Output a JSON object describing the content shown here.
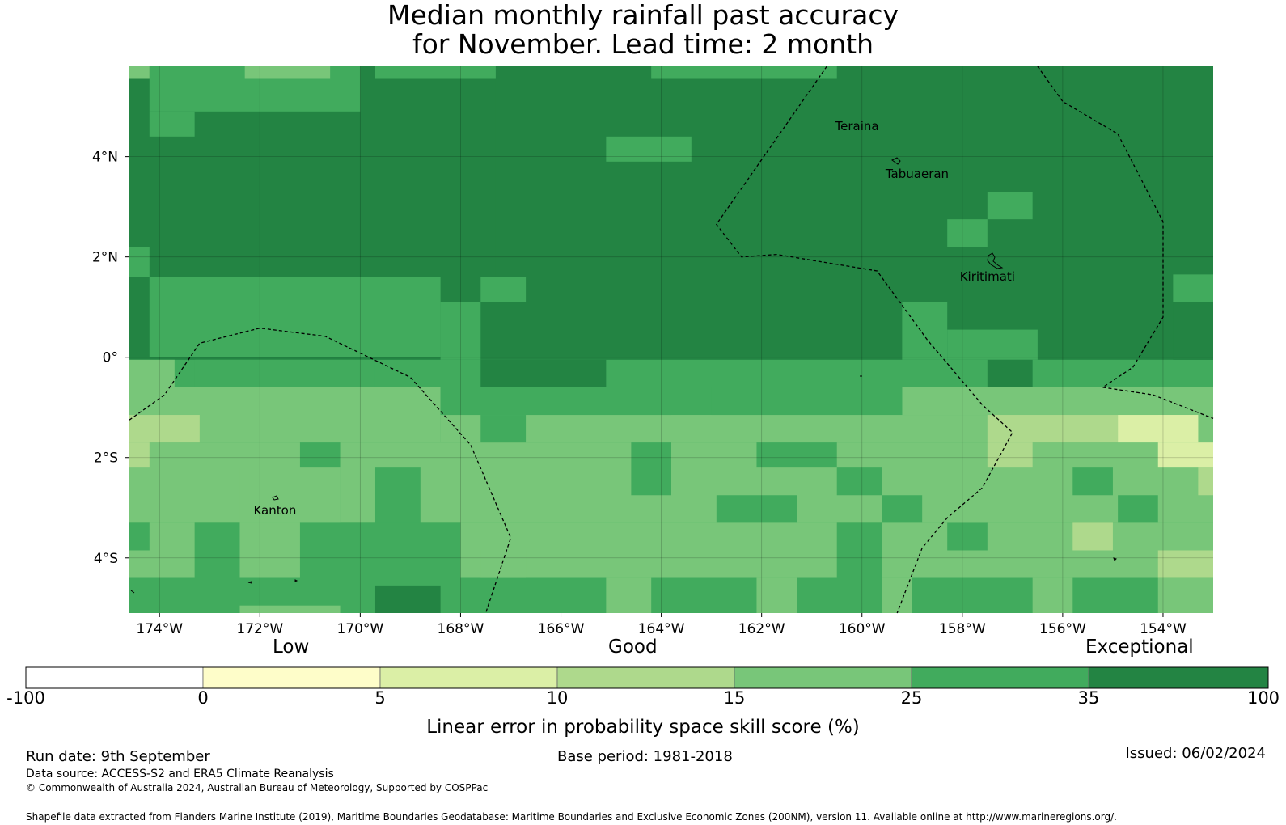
{
  "title": {
    "line1": "Median monthly rainfall past accuracy",
    "line2": "for November. Lead time: 2 month"
  },
  "map": {
    "lon_range": [
      -174.6,
      -153.0
    ],
    "lat_range": [
      -5.1,
      5.8
    ],
    "lon_ticks": [
      {
        "value": -174,
        "label": "174°W"
      },
      {
        "value": -172,
        "label": "172°W"
      },
      {
        "value": -170,
        "label": "170°W"
      },
      {
        "value": -168,
        "label": "168°W"
      },
      {
        "value": -166,
        "label": "166°W"
      },
      {
        "value": -164,
        "label": "164°W"
      },
      {
        "value": -162,
        "label": "162°W"
      },
      {
        "value": -160,
        "label": "160°W"
      },
      {
        "value": -158,
        "label": "158°W"
      },
      {
        "value": -156,
        "label": "156°W"
      },
      {
        "value": -154,
        "label": "154°W"
      }
    ],
    "lat_ticks": [
      {
        "value": 4,
        "label": "4°N"
      },
      {
        "value": 2,
        "label": "2°N"
      },
      {
        "value": 0,
        "label": "0°"
      },
      {
        "value": -2,
        "label": "2°S"
      },
      {
        "value": -4,
        "label": "4°S"
      }
    ],
    "places": [
      {
        "name": "Teraina",
        "lon": -160.1,
        "lat": 4.6
      },
      {
        "name": "Tabuaeran",
        "lon": -158.9,
        "lat": 3.65
      },
      {
        "name": "Kiritimati",
        "lon": -157.5,
        "lat": 1.6
      },
      {
        "name": "Kanton",
        "lon": -171.7,
        "lat": -3.05
      }
    ],
    "base_class": 6,
    "skill_regions": [
      {
        "lon": [
          -174.6,
          -153.0
        ],
        "lat": [
          -5.1,
          5.8
        ],
        "class": 5
      },
      {
        "lon": [
          -174.6,
          -153.0
        ],
        "lat": [
          -0.05,
          5.8
        ],
        "class": 6
      },
      {
        "lon": [
          -174.6,
          -167.3
        ],
        "lat": [
          1.6,
          5.8
        ],
        "class": 6
      },
      {
        "lon": [
          -174.2,
          -170.0
        ],
        "lat": [
          4.9,
          5.8
        ],
        "class": 5
      },
      {
        "lon": [
          -174.6,
          -174.2
        ],
        "lat": [
          5.55,
          5.8
        ],
        "class": 4
      },
      {
        "lon": [
          -172.3,
          -170.6
        ],
        "lat": [
          5.55,
          5.8
        ],
        "class": 4
      },
      {
        "lon": [
          -174.2,
          -173.3
        ],
        "lat": [
          4.4,
          4.9
        ],
        "class": 5
      },
      {
        "lon": [
          -174.6,
          -174.2
        ],
        "lat": [
          1.6,
          2.2
        ],
        "class": 5
      },
      {
        "lon": [
          -174.2,
          -168.4
        ],
        "lat": [
          0.0,
          1.6
        ],
        "class": 5
      },
      {
        "lon": [
          -168.4,
          -167.6
        ],
        "lat": [
          -0.05,
          1.1
        ],
        "class": 5
      },
      {
        "lon": [
          -167.6,
          -166.7
        ],
        "lat": [
          1.1,
          1.6
        ],
        "class": 5
      },
      {
        "lon": [
          -169.7,
          -167.3
        ],
        "lat": [
          5.55,
          5.8
        ],
        "class": 5
      },
      {
        "lon": [
          -165.1,
          -163.4
        ],
        "lat": [
          3.9,
          4.4
        ],
        "class": 5
      },
      {
        "lon": [
          -164.2,
          -160.5
        ],
        "lat": [
          5.55,
          5.8
        ],
        "class": 5
      },
      {
        "lon": [
          -159.2,
          -158.3
        ],
        "lat": [
          -0.05,
          1.1
        ],
        "class": 5
      },
      {
        "lon": [
          -158.3,
          -156.5
        ],
        "lat": [
          -0.05,
          0.55
        ],
        "class": 5
      },
      {
        "lon": [
          -157.5,
          -156.6
        ],
        "lat": [
          2.75,
          3.3
        ],
        "class": 5
      },
      {
        "lon": [
          -158.3,
          -157.5
        ],
        "lat": [
          2.2,
          2.75
        ],
        "class": 5
      },
      {
        "lon": [
          -153.8,
          -153.0
        ],
        "lat": [
          1.1,
          1.65
        ],
        "class": 5
      },
      {
        "lon": [
          -153.8,
          -153.0
        ],
        "lat": [
          -0.05,
          1.1
        ],
        "class": 6
      },
      {
        "lon": [
          -167.6,
          -165.1
        ],
        "lat": [
          -0.6,
          -0.05
        ],
        "class": 6
      },
      {
        "lon": [
          -157.5,
          -156.6
        ],
        "lat": [
          -0.6,
          -0.05
        ],
        "class": 6
      },
      {
        "lon": [
          -174.6,
          -173.7
        ],
        "lat": [
          -0.6,
          -0.05
        ],
        "class": 4
      },
      {
        "lon": [
          -174.6,
          -168.4
        ],
        "lat": [
          -1.7,
          -0.6
        ],
        "class": 4
      },
      {
        "lon": [
          -168.4,
          -153.0
        ],
        "lat": [
          -1.7,
          -1.15
        ],
        "class": 4
      },
      {
        "lon": [
          -159.2,
          -153.0
        ],
        "lat": [
          -1.15,
          -0.6
        ],
        "class": 4
      },
      {
        "lon": [
          -174.6,
          -153.0
        ],
        "lat": [
          -3.3,
          -1.7
        ],
        "class": 4
      },
      {
        "lon": [
          -174.6,
          -153.0
        ],
        "lat": [
          -4.4,
          -3.3
        ],
        "class": 4
      },
      {
        "lon": [
          -173.3,
          -169.7
        ],
        "lat": [
          -0.6,
          -0.05
        ],
        "class": 5
      },
      {
        "lon": [
          -168.4,
          -163.8
        ],
        "lat": [
          -1.15,
          -0.6
        ],
        "class": 5
      },
      {
        "lon": [
          -163.0,
          -159.2
        ],
        "lat": [
          -1.15,
          -0.6
        ],
        "class": 5
      },
      {
        "lon": [
          -167.6,
          -166.7
        ],
        "lat": [
          -1.7,
          -1.15
        ],
        "class": 5
      },
      {
        "lon": [
          -171.2,
          -170.4
        ],
        "lat": [
          -3.3,
          -1.7
        ],
        "class": 5
      },
      {
        "lon": [
          -169.7,
          -168.8
        ],
        "lat": [
          -4.4,
          -2.2
        ],
        "class": 5
      },
      {
        "lon": [
          -164.6,
          -163.8
        ],
        "lat": [
          -2.75,
          -1.7
        ],
        "class": 5
      },
      {
        "lon": [
          -162.1,
          -160.5
        ],
        "lat": [
          -2.2,
          -1.7
        ],
        "class": 5
      },
      {
        "lon": [
          -160.5,
          -159.6
        ],
        "lat": [
          -2.75,
          -2.2
        ],
        "class": 5
      },
      {
        "lon": [
          -162.9,
          -161.3
        ],
        "lat": [
          -3.3,
          -2.75
        ],
        "class": 5
      },
      {
        "lon": [
          -159.6,
          -158.8
        ],
        "lat": [
          -3.3,
          -2.75
        ],
        "class": 5
      },
      {
        "lon": [
          -155.8,
          -155.0
        ],
        "lat": [
          -2.75,
          -2.2
        ],
        "class": 5
      },
      {
        "lon": [
          -154.9,
          -154.1
        ],
        "lat": [
          -3.3,
          -2.75
        ],
        "class": 5
      },
      {
        "lon": [
          -174.6,
          -174.2
        ],
        "lat": [
          -3.85,
          -3.3
        ],
        "class": 5
      },
      {
        "lon": [
          -173.3,
          -172.4
        ],
        "lat": [
          -4.4,
          -3.3
        ],
        "class": 5
      },
      {
        "lon": [
          -171.2,
          -168.0
        ],
        "lat": [
          -4.4,
          -3.3
        ],
        "class": 5
      },
      {
        "lon": [
          -160.5,
          -159.6
        ],
        "lat": [
          -4.4,
          -3.3
        ],
        "class": 5
      },
      {
        "lon": [
          -158.3,
          -157.5
        ],
        "lat": [
          -3.85,
          -3.3
        ],
        "class": 5
      },
      {
        "lon": [
          -174.6,
          -153.0
        ],
        "lat": [
          -5.1,
          -4.4
        ],
        "class": 5
      },
      {
        "lon": [
          -174.6,
          -173.2
        ],
        "lat": [
          -1.7,
          -1.15
        ],
        "class": 3
      },
      {
        "lon": [
          -174.6,
          -174.2
        ],
        "lat": [
          -2.2,
          -1.7
        ],
        "class": 3
      },
      {
        "lon": [
          -157.5,
          -154.9
        ],
        "lat": [
          -1.7,
          -1.15
        ],
        "class": 3
      },
      {
        "lon": [
          -157.5,
          -156.6
        ],
        "lat": [
          -2.2,
          -1.7
        ],
        "class": 3
      },
      {
        "lon": [
          -154.1,
          -153.3
        ],
        "lat": [
          -1.7,
          -1.15
        ],
        "class": 3
      },
      {
        "lon": [
          -155.8,
          -155.0
        ],
        "lat": [
          -3.85,
          -3.3
        ],
        "class": 3
      },
      {
        "lon": [
          -153.3,
          -153.0
        ],
        "lat": [
          -2.75,
          -2.2
        ],
        "class": 3
      },
      {
        "lon": [
          -154.9,
          -153.3
        ],
        "lat": [
          -1.7,
          -1.15
        ],
        "class": 2
      },
      {
        "lon": [
          -154.1,
          -153.0
        ],
        "lat": [
          -2.2,
          -1.7
        ],
        "class": 2
      },
      {
        "lon": [
          -154.1,
          -153.0
        ],
        "lat": [
          -4.4,
          -3.85
        ],
        "class": 3
      },
      {
        "lon": [
          -154.1,
          -153.0
        ],
        "lat": [
          -5.1,
          -4.4
        ],
        "class": 4
      },
      {
        "lon": [
          -172.4,
          -170.4
        ],
        "lat": [
          -3.3,
          -2.2
        ],
        "class": 4
      },
      {
        "lon": [
          -165.1,
          -164.2
        ],
        "lat": [
          -5.1,
          -4.4
        ],
        "class": 4
      },
      {
        "lon": [
          -167.6,
          -166.7
        ],
        "lat": [
          -4.4,
          -3.85
        ],
        "class": 4
      },
      {
        "lon": [
          -162.1,
          -161.3
        ],
        "lat": [
          -5.1,
          -4.4
        ],
        "class": 4
      },
      {
        "lon": [
          -158.3,
          -157.5
        ],
        "lat": [
          -3.3,
          -2.75
        ],
        "class": 4
      },
      {
        "lon": [
          -156.6,
          -155.8
        ],
        "lat": [
          -5.1,
          -4.4
        ],
        "class": 4
      },
      {
        "lon": [
          -172.4,
          -170.4
        ],
        "lat": [
          -5.1,
          -4.95
        ],
        "class": 4
      },
      {
        "lon": [
          -159.6,
          -159.0
        ],
        "lat": [
          -5.1,
          -4.4
        ],
        "class": 4
      },
      {
        "lon": [
          -169.7,
          -168.4
        ],
        "lat": [
          -5.1,
          -4.55
        ],
        "class": 6
      }
    ],
    "eez_boundaries": [
      [
        [
          -174.6,
          -1.25
        ],
        [
          -173.9,
          -0.75
        ],
        [
          -173.2,
          0.28
        ],
        [
          -172.0,
          0.58
        ],
        [
          -170.7,
          0.42
        ],
        [
          -169.0,
          -0.4
        ],
        [
          -167.8,
          -1.75
        ],
        [
          -167.0,
          -3.6
        ],
        [
          -167.5,
          -5.1
        ]
      ],
      [
        [
          -160.7,
          5.8
        ],
        [
          -162.9,
          2.65
        ],
        [
          -162.4,
          2.0
        ],
        [
          -161.7,
          2.05
        ],
        [
          -159.7,
          1.72
        ],
        [
          -158.7,
          0.35
        ],
        [
          -157.6,
          -0.95
        ],
        [
          -157.0,
          -1.5
        ],
        [
          -157.6,
          -2.6
        ],
        [
          -158.3,
          -3.2
        ],
        [
          -158.8,
          -3.8
        ],
        [
          -159.3,
          -5.1
        ]
      ],
      [
        [
          -156.5,
          5.8
        ],
        [
          -156.0,
          5.1
        ],
        [
          -154.9,
          4.45
        ],
        [
          -154.0,
          2.7
        ],
        [
          -154.0,
          0.8
        ],
        [
          -154.6,
          -0.2
        ],
        [
          -155.2,
          -0.6
        ]
      ],
      [
        [
          -155.2,
          -0.6
        ],
        [
          -154.2,
          -0.75
        ],
        [
          -153.0,
          -1.22
        ]
      ]
    ]
  },
  "colorbar": {
    "words": [
      "Low",
      "Good",
      "Exceptional"
    ],
    "ticks": [
      "-100",
      "0",
      "5",
      "10",
      "15",
      "25",
      "35",
      "100"
    ],
    "label": "Linear error in probability space skill score (%)",
    "colors": [
      "#ffffff",
      "#fefdc9",
      "#dbefa6",
      "#aed98c",
      "#78c679",
      "#41ab5d",
      "#238443"
    ]
  },
  "footer": {
    "run_date": "Run date: 9th September",
    "base_period": "Base period: 1981-2018",
    "issued": "Issued: 06/02/2024",
    "data_source": "Data source: ACCESS-S2 and ERA5 Climate Reanalysis",
    "copyright": "© Commonwealth of Australia 2024, Australian Bureau of Meteorology, Supported by COSPPac",
    "shapefile": "Shapefile data extracted from Flanders Marine Institute (2019), Maritime Boundaries Geodatabase: Maritime Boundaries and Exclusive Economic Zones (200NM), version 11. Available online at http://www.marineregions.org/."
  }
}
